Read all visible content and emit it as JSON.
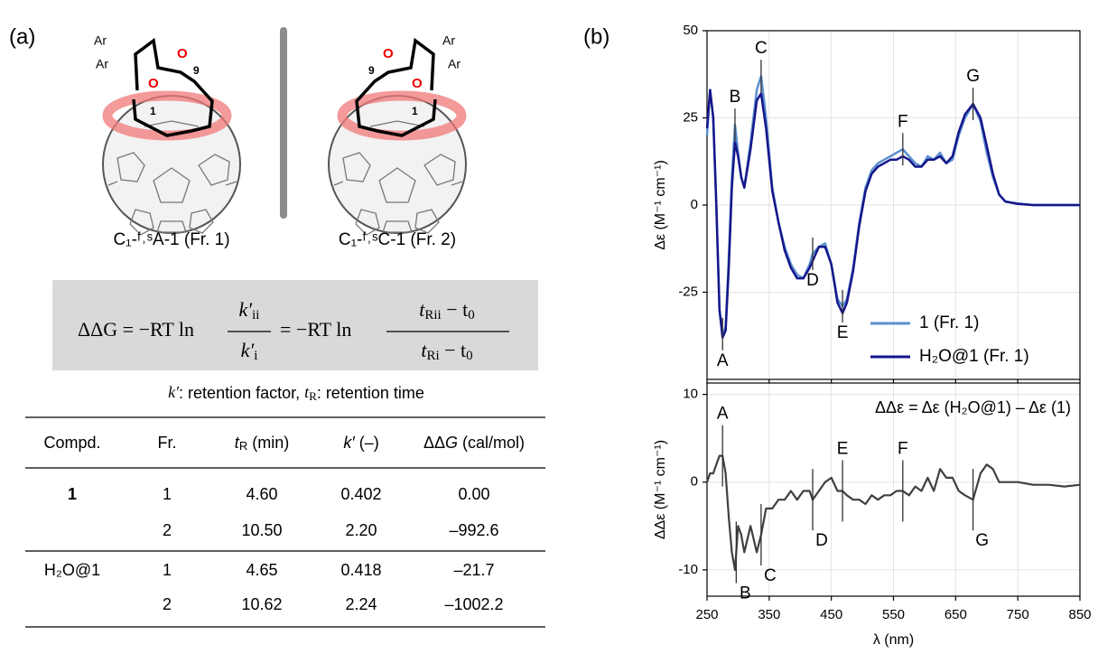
{
  "panel_a": {
    "label": "(a)",
    "structures": [
      {
        "ar_top": "Ar",
        "ar_bottom": "Ar",
        "ketone_o": "O",
        "ring_o": "O",
        "c9": "9",
        "c1": "1",
        "caption": "C₁-ᶠ˒ˢA-1 (Fr. 1)"
      },
      {
        "ar_top": "Ar",
        "ar_bottom": "Ar",
        "ketone_o": "O",
        "ring_o": "O",
        "c9": "9",
        "c1": "1",
        "caption": "C₁-ᶠ˒ˢC-1 (Fr. 2)"
      }
    ],
    "equation": {
      "lhs": "ΔΔG = −RT ln",
      "num1": [
        "k′",
        "ii"
      ],
      "den1": [
        "k′",
        "i"
      ],
      "middle": "= −RT ln",
      "num2": [
        "t",
        "Rii",
        " − t",
        "0"
      ],
      "den2": [
        "t",
        "Ri",
        " − t",
        "0"
      ]
    },
    "note": [
      "k′",
      ": retention factor, ",
      "t",
      "R",
      ": retention time"
    ],
    "table": {
      "headers": [
        "Compd.",
        "Fr.",
        [
          "t",
          "R",
          " (min)"
        ],
        [
          "k′",
          " (–)"
        ],
        [
          "ΔΔ",
          "G",
          " (cal/mol)"
        ]
      ],
      "groups": [
        {
          "compd": "1",
          "rows": [
            [
              "1",
              "4.60",
              "0.402",
              "0.00"
            ],
            [
              "2",
              "10.50",
              "2.20",
              "–992.6"
            ]
          ]
        },
        {
          "compd": "H₂O@1",
          "rows": [
            [
              "1",
              "4.65",
              "0.418",
              "–21.7"
            ],
            [
              "2",
              "10.62",
              "2.24",
              "–1002.2"
            ]
          ]
        }
      ]
    }
  },
  "panel_b": {
    "label": "(b)"
  },
  "chart_data": [
    {
      "type": "line",
      "ylabel": "Δε (M⁻¹ cm⁻¹)",
      "xlim": [
        250,
        850
      ],
      "xticks": [
        250,
        350,
        450,
        550,
        650,
        750,
        850
      ],
      "ylim": [
        -50,
        50
      ],
      "yticks": [
        50,
        25,
        0,
        -25
      ],
      "grid": true,
      "legend": "lower right",
      "x": [
        250,
        255,
        260,
        265,
        270,
        275,
        280,
        285,
        290,
        295,
        300,
        305,
        310,
        320,
        330,
        337,
        345,
        355,
        365,
        375,
        385,
        395,
        405,
        415,
        420,
        430,
        440,
        450,
        460,
        468,
        475,
        485,
        495,
        505,
        515,
        525,
        535,
        545,
        555,
        565,
        575,
        585,
        595,
        605,
        615,
        625,
        635,
        645,
        655,
        665,
        678,
        690,
        700,
        710,
        720,
        730,
        750,
        775,
        800,
        825,
        850
      ],
      "series": [
        {
          "name": "1 (Fr. 1)",
          "color": "#5b8fd0",
          "values": [
            20,
            33,
            25,
            0,
            -30,
            -37,
            -35,
            -15,
            8,
            23,
            15,
            8,
            5,
            18,
            33,
            37,
            25,
            5,
            -5,
            -12,
            -17,
            -20,
            -21,
            -17,
            -14,
            -12,
            -11,
            -17,
            -27,
            -29,
            -27,
            -18,
            -5,
            5,
            10,
            12,
            13,
            14,
            15,
            16,
            14,
            12,
            11,
            14,
            13,
            15,
            12,
            13,
            20,
            25,
            29,
            24,
            15,
            8,
            3,
            1,
            0.5,
            0,
            0,
            0,
            0
          ]
        },
        {
          "name": "H₂O@1 (Fr. 1)",
          "color": "#15168a",
          "values": [
            22,
            33,
            25,
            0,
            -30,
            -38,
            -36,
            -18,
            5,
            18,
            14,
            8,
            5,
            16,
            30,
            32,
            22,
            4,
            -5,
            -13,
            -18,
            -21,
            -21,
            -18,
            -16,
            -12,
            -12,
            -17,
            -28,
            -31,
            -28,
            -19,
            -6,
            4,
            9,
            11,
            12,
            13,
            13,
            14,
            13,
            11,
            11,
            13,
            13,
            14,
            12,
            14,
            21,
            26,
            29,
            25,
            17,
            9,
            3,
            1,
            0.3,
            0,
            0,
            0,
            0
          ]
        }
      ],
      "annotations": [
        {
          "label": "A",
          "x": 275
        },
        {
          "label": "B",
          "x": 295
        },
        {
          "label": "C",
          "x": 337
        },
        {
          "label": "D",
          "x": 420
        },
        {
          "label": "E",
          "x": 468
        },
        {
          "label": "F",
          "x": 565
        },
        {
          "label": "G",
          "x": 678
        }
      ]
    },
    {
      "type": "line",
      "ylabel": "ΔΔε (M⁻¹ cm⁻¹)",
      "xlabel": "λ (nm)",
      "title": "ΔΔε = Δε (H₂O@1) – Δε (1)",
      "xlim": [
        250,
        850
      ],
      "xticks": [
        250,
        350,
        450,
        550,
        650,
        750,
        850
      ],
      "ylim": [
        -13,
        11.3
      ],
      "yticks": [
        10,
        0,
        -10
      ],
      "grid": true,
      "x": [
        250,
        255,
        260,
        265,
        270,
        275,
        280,
        285,
        290,
        295,
        300,
        305,
        310,
        320,
        330,
        337,
        345,
        355,
        365,
        375,
        385,
        395,
        405,
        415,
        420,
        430,
        440,
        450,
        460,
        468,
        475,
        485,
        495,
        505,
        515,
        525,
        535,
        545,
        555,
        565,
        575,
        585,
        595,
        605,
        615,
        625,
        635,
        645,
        655,
        665,
        678,
        690,
        700,
        710,
        720,
        730,
        750,
        775,
        800,
        825,
        850
      ],
      "color": "#404040",
      "values": [
        0,
        1,
        1,
        2,
        3,
        3,
        1,
        -4,
        -8,
        -10,
        -5,
        -6,
        -8,
        -5,
        -8,
        -6,
        -3,
        -3,
        -2,
        -2,
        -1,
        -2,
        -1,
        -1,
        -2,
        -1,
        0,
        0.5,
        -1,
        -1,
        -1.5,
        -2,
        -2,
        -2.5,
        -1.5,
        -2,
        -1.5,
        -1.5,
        -1,
        -1,
        -1.5,
        -0.5,
        -1,
        0.5,
        -1,
        1.5,
        0.5,
        0.5,
        -1,
        -1.5,
        -2,
        1,
        2,
        1.5,
        0,
        0,
        0,
        -0.3,
        -0.3,
        -0.5,
        -0.3
      ],
      "annotations": [
        {
          "label": "A",
          "x": 275
        },
        {
          "label": "B",
          "x": 297
        },
        {
          "label": "C",
          "x": 337
        },
        {
          "label": "D",
          "x": 420
        },
        {
          "label": "E",
          "x": 468
        },
        {
          "label": "F",
          "x": 565
        },
        {
          "label": "G",
          "x": 678
        }
      ]
    }
  ]
}
